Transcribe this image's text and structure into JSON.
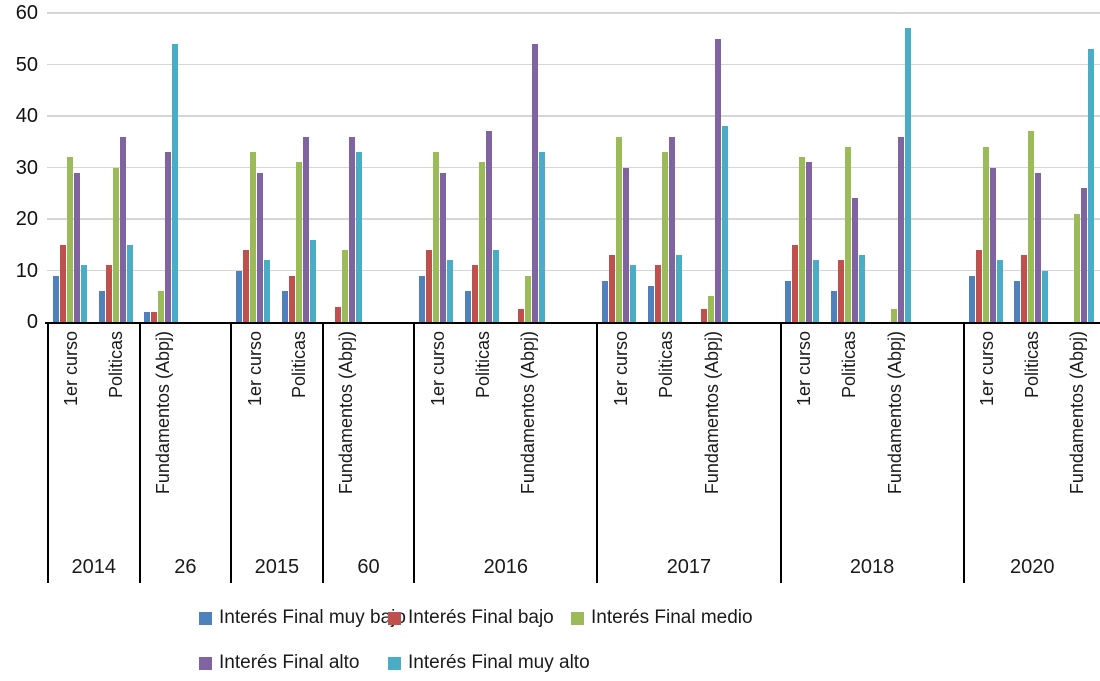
{
  "chart_data": {
    "type": "bar",
    "title": "",
    "xlabel": "",
    "ylabel": "",
    "ylim": [
      0,
      60
    ],
    "yticks": [
      0,
      10,
      20,
      30,
      40,
      50,
      60
    ],
    "grid": true,
    "legend_position": "bottom",
    "series_names": [
      "Interés Final muy bajo",
      "Interés Final bajo",
      "Interés Final medio",
      "Interés Final alto",
      "Interés Final muy alto"
    ],
    "series_colors": [
      "#4F81BD",
      "#C0504D",
      "#9BBB59",
      "#8064A2",
      "#4BACC6"
    ],
    "groups": [
      {
        "label": "2014",
        "trailing_empty_slots": 0,
        "clusters": [
          {
            "label": "1er curso",
            "values": [
              9,
              15,
              32,
              29,
              11
            ]
          },
          {
            "label": "Politicas",
            "values": [
              6,
              11,
              30,
              36,
              15
            ]
          }
        ]
      },
      {
        "label": "26",
        "trailing_empty_slots": 1,
        "clusters": [
          {
            "label": "Fundamentos (Abpj)",
            "values": [
              2,
              2,
              6,
              33,
              54
            ]
          }
        ]
      },
      {
        "label": "2015",
        "trailing_empty_slots": 0,
        "clusters": [
          {
            "label": "1er curso",
            "values": [
              10,
              14,
              33,
              29,
              12
            ]
          },
          {
            "label": "Politicas",
            "values": [
              6,
              9,
              31,
              36,
              16
            ]
          }
        ]
      },
      {
        "label": "60",
        "trailing_empty_slots": 1,
        "clusters": [
          {
            "label": "Fundamentos (Abpj)",
            "values": [
              0,
              3,
              14,
              36,
              33
            ]
          }
        ]
      },
      {
        "label": "2016",
        "trailing_empty_slots": 1,
        "clusters": [
          {
            "label": "1er curso",
            "values": [
              9,
              14,
              33,
              29,
              12
            ]
          },
          {
            "label": "Politicas",
            "values": [
              6,
              11,
              31,
              37,
              14
            ]
          },
          {
            "label": "Fundamentos (Abpj)",
            "values": [
              0,
              2.5,
              9,
              54,
              33
            ]
          }
        ]
      },
      {
        "label": "2017",
        "trailing_empty_slots": 1,
        "clusters": [
          {
            "label": "1er curso",
            "values": [
              8,
              13,
              36,
              30,
              11
            ]
          },
          {
            "label": "Politicas",
            "values": [
              7,
              11,
              33,
              36,
              13
            ]
          },
          {
            "label": "Fundamentos (Abpj)",
            "values": [
              0,
              2.5,
              5,
              55,
              38
            ]
          }
        ]
      },
      {
        "label": "2018",
        "trailing_empty_slots": 1,
        "clusters": [
          {
            "label": "1er curso",
            "values": [
              8,
              15,
              32,
              31,
              12
            ]
          },
          {
            "label": "Politicas",
            "values": [
              6,
              12,
              34,
              24,
              13
            ]
          },
          {
            "label": "Fundamentos (Abpj)",
            "values": [
              0,
              0,
              2.5,
              36,
              57
            ]
          }
        ]
      },
      {
        "label": "2020",
        "trailing_empty_slots": 0,
        "clusters": [
          {
            "label": "1er curso",
            "values": [
              9,
              14,
              34,
              30,
              12
            ]
          },
          {
            "label": "Politicas",
            "values": [
              8,
              13,
              37,
              29,
              10
            ]
          },
          {
            "label": "Fundamentos (Abpj)",
            "values": [
              0,
              0,
              21,
              26,
              53
            ]
          }
        ]
      }
    ],
    "colors": {
      "gridline": "#d6d6d6",
      "axis": "#000000",
      "text": "#1a1a1a",
      "background": "#ffffff"
    }
  }
}
